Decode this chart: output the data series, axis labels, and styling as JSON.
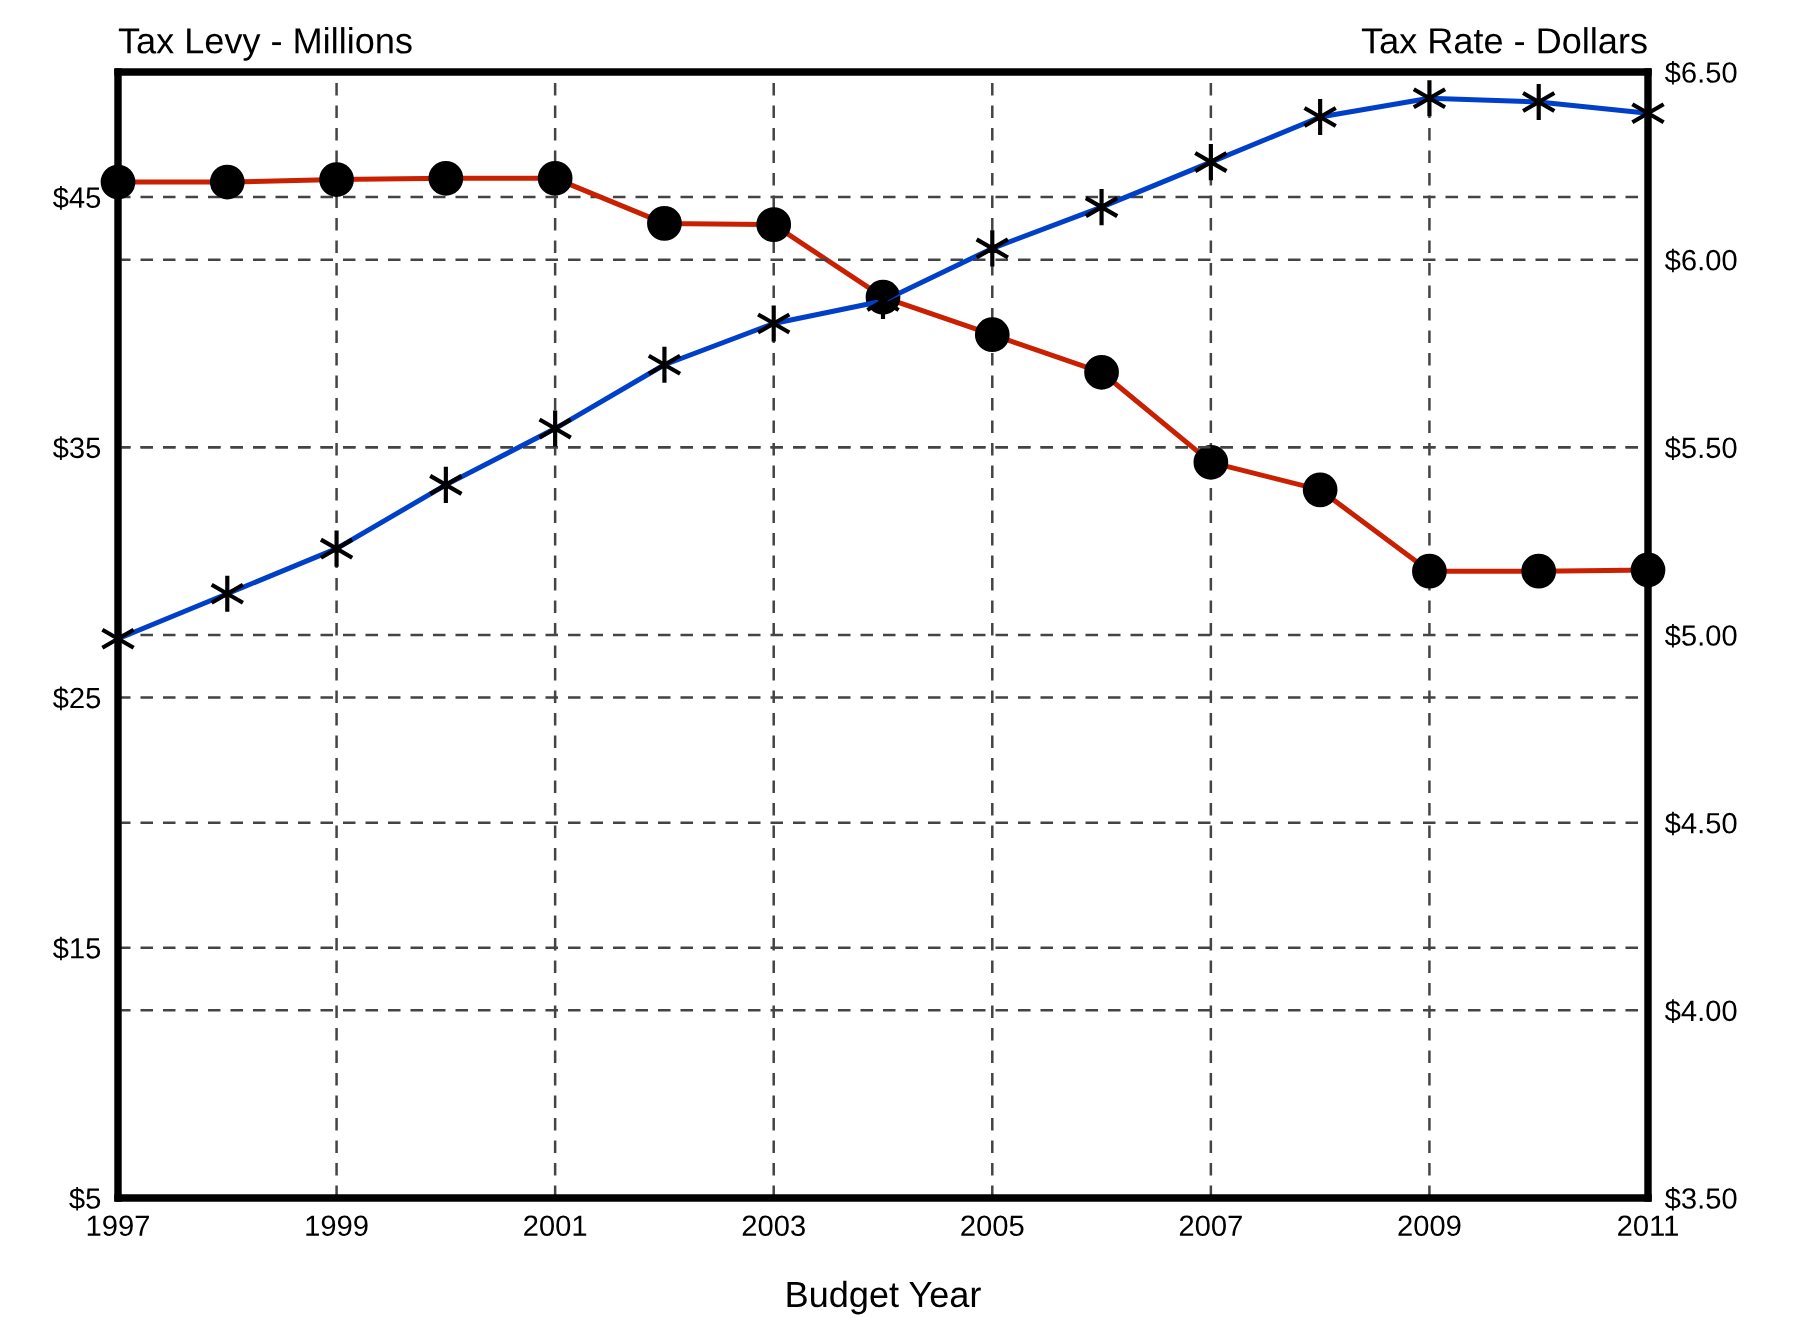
{
  "chart_data": {
    "type": "line",
    "xlabel": "Budget Year",
    "ylabel": "Tax Levy - Millions",
    "y2label": "Tax Rate - Dollars",
    "x": [
      1997,
      1998,
      1999,
      2000,
      2001,
      2002,
      2003,
      2004,
      2005,
      2006,
      2007,
      2008,
      2009,
      2010,
      2011
    ],
    "series": [
      {
        "color": "#c82000",
        "marker": "circle",
        "values": [
          45.6,
          45.6,
          45.7,
          45.75,
          45.75,
          43.95,
          43.9,
          41.0,
          39.5,
          38.0,
          34.4,
          33.3,
          30.05,
          30.05,
          30.1
        ]
      },
      {
        "color": "#0040c8",
        "marker": "cross",
        "axis": "y2",
        "values": [
          4.99,
          5.11,
          5.23,
          5.4,
          5.55,
          5.72,
          5.83,
          5.89,
          6.03,
          6.14,
          6.26,
          6.38,
          6.43,
          6.42,
          6.39
        ]
      }
    ],
    "xlim": [
      1997,
      2011
    ],
    "xticks": [
      1997,
      1999,
      2001,
      2003,
      2005,
      2007,
      2009,
      2011
    ],
    "ylim": [
      5,
      50
    ],
    "yticks": [
      {
        "value": 5,
        "label": "$5"
      },
      {
        "value": 15,
        "label": "$15"
      },
      {
        "value": 25,
        "label": "$25"
      },
      {
        "value": 35,
        "label": "$35"
      },
      {
        "value": 45,
        "label": "$45"
      }
    ],
    "y2lim": [
      3.5,
      6.5
    ],
    "y2ticks": [
      {
        "value": 3.5,
        "label": "$3.50"
      },
      {
        "value": 4.0,
        "label": "$4.00"
      },
      {
        "value": 4.5,
        "label": "$4.50"
      },
      {
        "value": 5.0,
        "label": "$5.00"
      },
      {
        "value": 5.5,
        "label": "$5.50"
      },
      {
        "value": 6.0,
        "label": "$6.00"
      },
      {
        "value": 6.5,
        "label": "$6.50"
      }
    ],
    "grid": true,
    "line_style": "solid"
  }
}
